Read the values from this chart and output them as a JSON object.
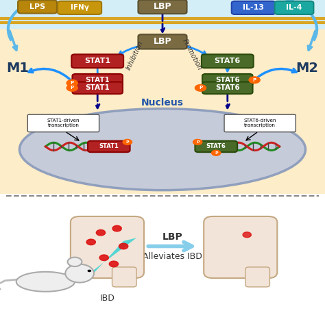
{
  "bg_color": "#FDEDC8",
  "cell_bg": "#C8D8E8",
  "nucleus_color": "#B0B8D0",
  "membrane_color": "#DAA520",
  "colors": {
    "membrane_color": "#DAA520",
    "LBP_pill": "#8B7355",
    "LBP_inner_pill": "#8B7355",
    "LPS_pill": "#B8860B",
    "IFNy_pill": "#DAA520",
    "IL13_pill": "#4169E1",
    "IL4_pill": "#20B2AA",
    "STAT1_pill": "#CD2626",
    "STAT6_pill": "#556B2F",
    "M1_text": "#1E3A5F",
    "M2_text": "#1E3A5F",
    "arrow_blue": "#1E90FF",
    "arrow_dark": "#00008B",
    "nucleus_stroke": "#7B9BB5",
    "dna_green": "#228B22",
    "dna_red": "#CD2626",
    "P_label": "#FF6600",
    "bottom_bg": "#FFFFFF",
    "bottom_arrow": "#87CEEB"
  },
  "labels": {
    "LBP_top": "LBP",
    "LBP_inner": "LBP",
    "LPS": "LPS",
    "IFNy": "IFNγ",
    "IL13": "IL-13",
    "IL4": "IL-4",
    "STAT1": "STAT1",
    "STAT6": "STAT6",
    "M1": "M1",
    "M2": "M2",
    "Nucleus": "Nucleus",
    "Inhibition": "Inhibition",
    "Promotion": "Promotion",
    "STAT1_driven": "STAT1-driven\ntranscription",
    "STAT6_driven": "STAT6-driven\ntranscription",
    "LBP_arrow": "LBP",
    "Alleviates": "Alleviates IBD",
    "IBD": "IBD"
  }
}
